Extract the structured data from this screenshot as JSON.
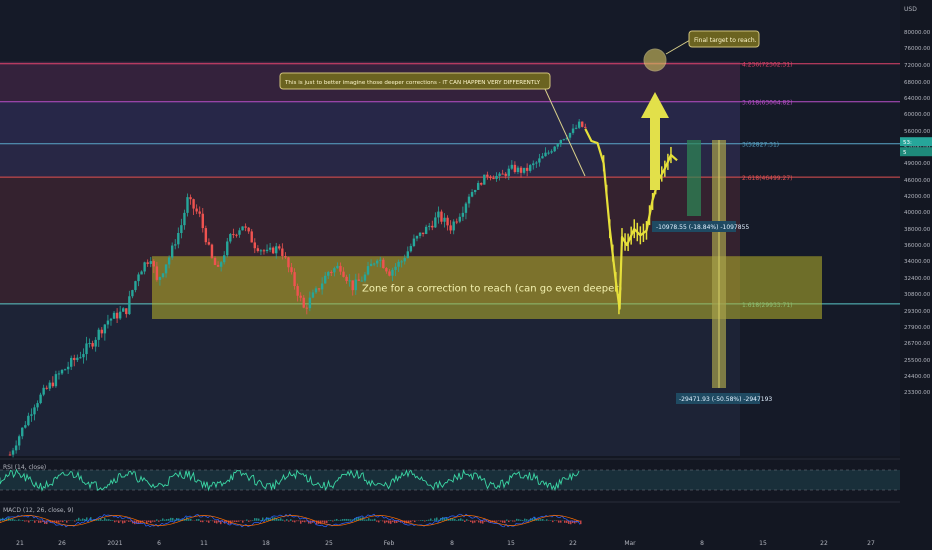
{
  "chart_data": {
    "type": "candlestick",
    "currency": "USD",
    "price_scale": {
      "ticks": [
        "80000.00",
        "76000.00",
        "72000.00",
        "68000.00",
        "64000.00",
        "60000.00",
        "56000.00",
        "52000.00",
        "49000.00",
        "46000.00",
        "42000.00",
        "40000.00",
        "38000.00",
        "36000.00",
        "34000.00",
        "32400.00",
        "30800.00",
        "29300.00",
        "27900.00",
        "26700.00",
        "25500.00",
        "24400.00",
        "23300.00"
      ],
      "ylim": [
        23000,
        82000
      ]
    },
    "time_labels": [
      "21",
      "26",
      "2021",
      "6",
      "11",
      "18",
      "25",
      "Feb",
      "8",
      "15",
      "22",
      "Mar",
      "8",
      "15",
      "22",
      "27"
    ],
    "price_path": [
      {
        "d": 0,
        "v": 19000
      },
      {
        "d": 4,
        "v": 22500
      },
      {
        "d": 8,
        "v": 24500
      },
      {
        "d": 13,
        "v": 26500
      },
      {
        "d": 16,
        "v": 28500
      },
      {
        "d": 19,
        "v": 29400
      },
      {
        "d": 21,
        "v": 33000
      },
      {
        "d": 23,
        "v": 34500
      },
      {
        "d": 24,
        "v": 32000
      },
      {
        "d": 26,
        "v": 34500
      },
      {
        "d": 28,
        "v": 38500
      },
      {
        "d": 29,
        "v": 41500
      },
      {
        "d": 31,
        "v": 39500
      },
      {
        "d": 33,
        "v": 34200
      },
      {
        "d": 34,
        "v": 33000
      },
      {
        "d": 36,
        "v": 37000
      },
      {
        "d": 38,
        "v": 38500
      },
      {
        "d": 40,
        "v": 36000
      },
      {
        "d": 42,
        "v": 35000
      },
      {
        "d": 44,
        "v": 35800
      },
      {
        "d": 46,
        "v": 32500
      },
      {
        "d": 48,
        "v": 29500
      },
      {
        "d": 50,
        "v": 31000
      },
      {
        "d": 52,
        "v": 33000
      },
      {
        "d": 54,
        "v": 33500
      },
      {
        "d": 56,
        "v": 31500
      },
      {
        "d": 58,
        "v": 32600
      },
      {
        "d": 60,
        "v": 34500
      },
      {
        "d": 62,
        "v": 33000
      },
      {
        "d": 64,
        "v": 34000
      },
      {
        "d": 66,
        "v": 36500
      },
      {
        "d": 68,
        "v": 38000
      },
      {
        "d": 70,
        "v": 39500
      },
      {
        "d": 72,
        "v": 38200
      },
      {
        "d": 74,
        "v": 40500
      },
      {
        "d": 76,
        "v": 44000
      },
      {
        "d": 78,
        "v": 47000
      },
      {
        "d": 80,
        "v": 46500
      },
      {
        "d": 82,
        "v": 48000
      },
      {
        "d": 84,
        "v": 47500
      },
      {
        "d": 86,
        "v": 49000
      },
      {
        "d": 88,
        "v": 51000
      },
      {
        "d": 90,
        "v": 54000
      },
      {
        "d": 92,
        "v": 56000
      },
      {
        "d": 93,
        "v": 57500
      },
      {
        "d": 94,
        "v": 56500
      }
    ],
    "projection_path": [
      {
        "d": 94,
        "v": 56500
      },
      {
        "d": 95,
        "v": 53500
      },
      {
        "d": 96,
        "v": 53000
      },
      {
        "d": 97,
        "v": 49000
      },
      {
        "d": 98,
        "v": 38000
      },
      {
        "d": 99,
        "v": 32000
      },
      {
        "d": 99.6,
        "v": 29500
      },
      {
        "d": 100,
        "v": 37000
      },
      {
        "d": 100.8,
        "v": 36000
      },
      {
        "d": 102,
        "v": 38000
      },
      {
        "d": 103,
        "v": 37200
      },
      {
        "d": 104,
        "v": 37800
      },
      {
        "d": 105,
        "v": 41500
      },
      {
        "d": 106,
        "v": 46000
      },
      {
        "d": 107,
        "v": 48000
      },
      {
        "d": 108,
        "v": 50500
      },
      {
        "d": 109,
        "v": 49500
      }
    ],
    "fib_levels": [
      {
        "label": "4.236(72302.31)",
        "value": 72302.31,
        "color": "#e0436a"
      },
      {
        "label": "3.618(63064.82)",
        "value": 63064.82,
        "color": "#b84fc9"
      },
      {
        "label": "3(52827.31)",
        "value": 52827.31,
        "color": "#5aa6c8"
      },
      {
        "label": "2.618(46499.27)",
        "value": 46499.27,
        "color": "#e05151"
      },
      {
        "label": "1.618(29933.71)",
        "value": 29933.71,
        "color": "#5ac8c8"
      }
    ],
    "correction_zone": {
      "label": "Zone for a correction to reach (can go even deeper)",
      "low": 28600,
      "high": 34600
    },
    "measure_labels": [
      "-10978.55 (-18.84%) -1097855",
      "-29471.93 (-50.58%) -2947193"
    ],
    "annotations": {
      "deeper_corrections": "This is just to better imagine those deeper corrections - IT CAN HAPPEN VERY DIFFERENTLY",
      "final_target": "Final target to reach."
    },
    "current_price": {
      "value": 53200,
      "labels": [
        "53:",
        "5"
      ]
    },
    "rsi": {
      "label": "RSI (14, close)",
      "ticks": [
        "80.00",
        "40.00"
      ],
      "upper": 70,
      "lower": 30,
      "ylim": [
        10,
        90
      ]
    },
    "macd": {
      "label": "MACD (12, 26, close, 9)",
      "ticks": [
        "4000.00",
        "0.00"
      ],
      "ylim": [
        -5000,
        5000
      ]
    }
  },
  "colors": {
    "background": "#131722",
    "candle_up": "#26a69a",
    "candle_down": "#ef5350",
    "zone_fill": "#b8b42a",
    "projection": "#e6e03a",
    "rsi_line": "#3bd6a4",
    "arrow": "#e2e04a"
  }
}
